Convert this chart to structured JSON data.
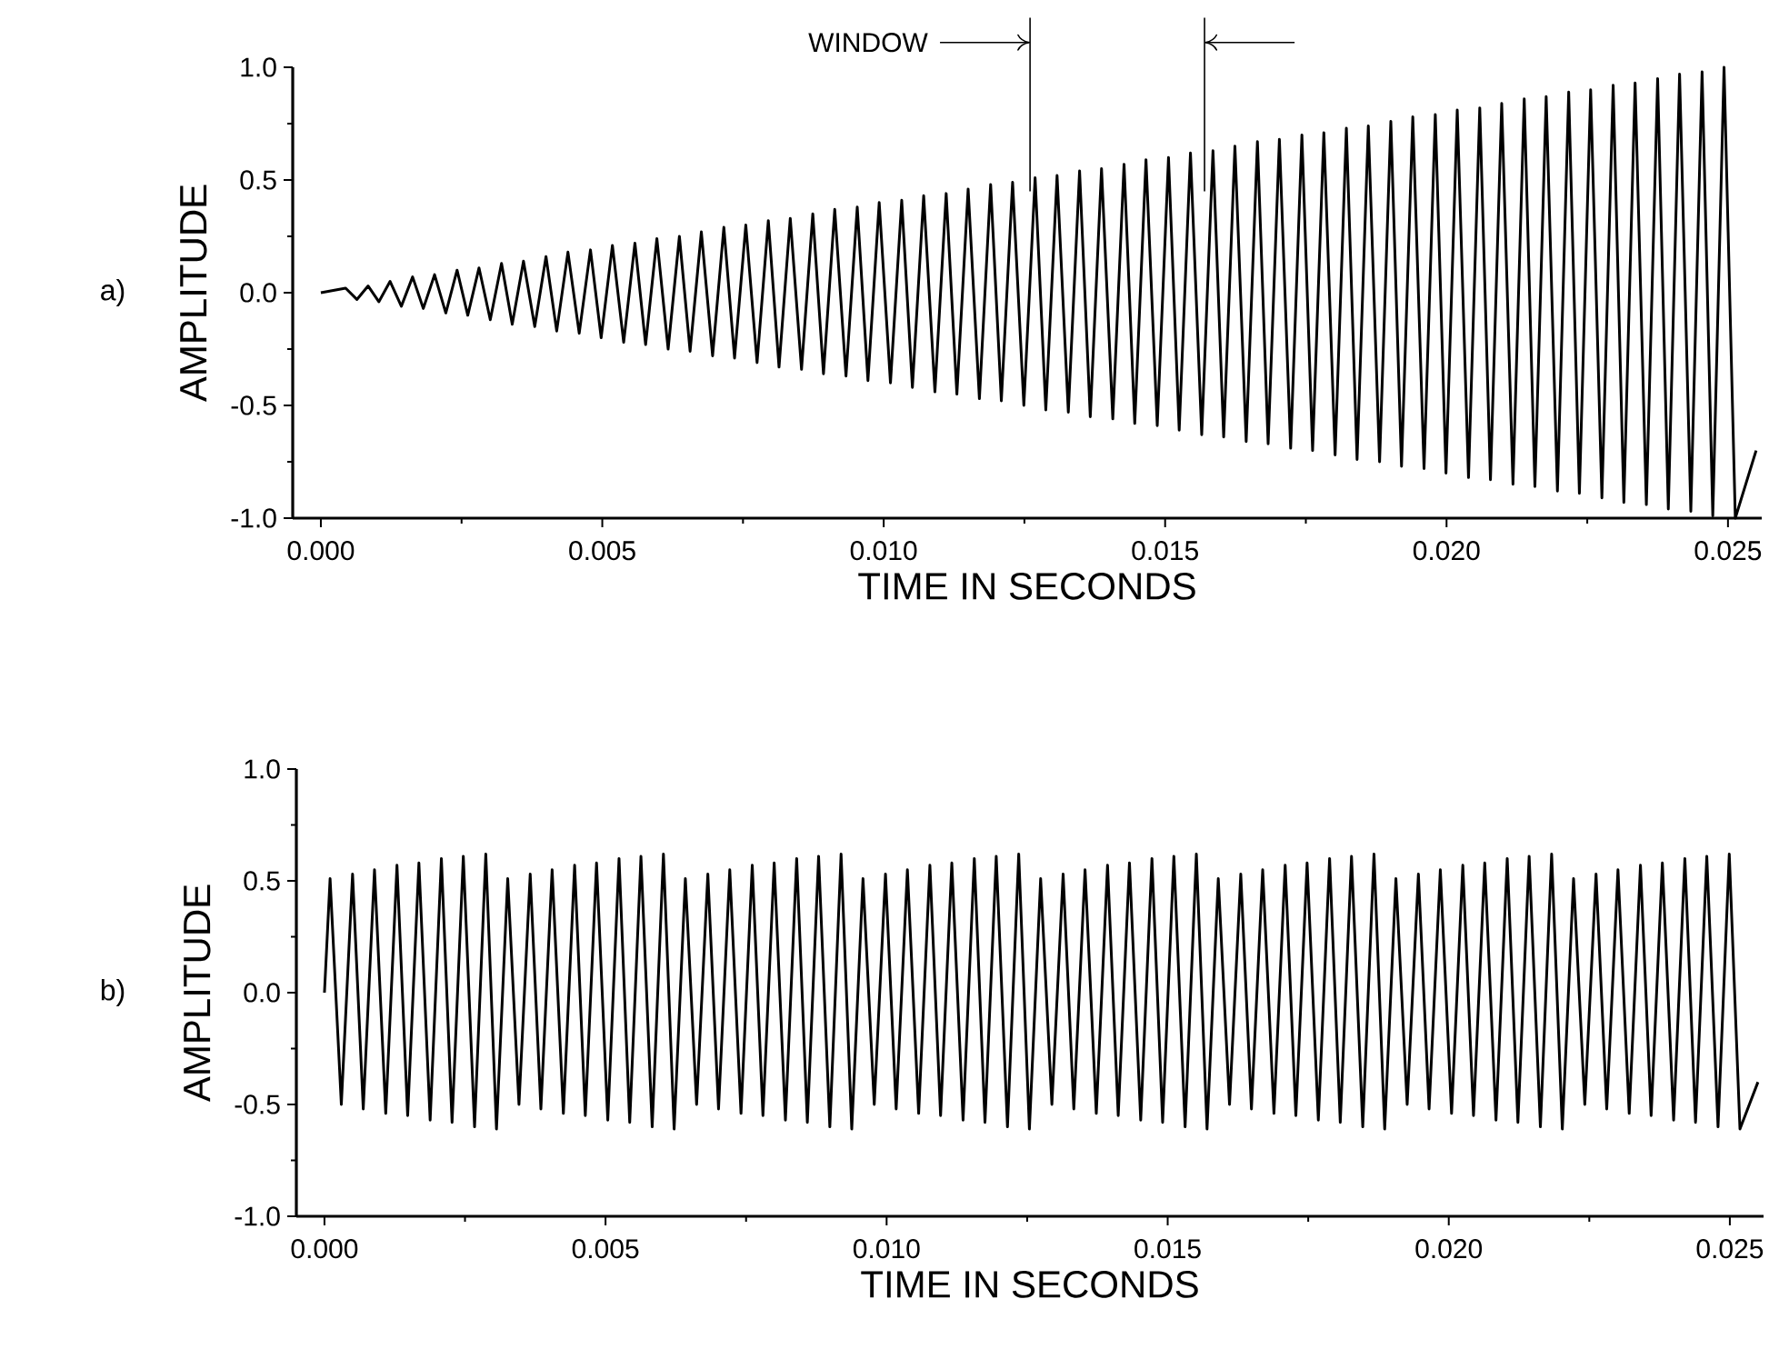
{
  "chart_data": [
    {
      "type": "line",
      "xlabel": "TIME IN SECONDS",
      "ylabel": "AMPLITUDE",
      "annotations": [
        "a)"
      ],
      "xlim": [
        -0.0005,
        0.0256
      ],
      "ylim": [
        -1,
        1
      ],
      "xticks": [
        {
          "value": 0,
          "label": "0.000"
        },
        {
          "value": 0.005,
          "label": "0.005"
        },
        {
          "value": 0.01,
          "label": "0.010"
        },
        {
          "value": 0.015,
          "label": "0.015"
        },
        {
          "value": 0.02,
          "label": "0.020"
        },
        {
          "value": 0.025,
          "label": "0.025"
        }
      ],
      "yticks": [
        {
          "value": -1,
          "label": "-1.0"
        },
        {
          "value": -0.5,
          "label": "-0.5"
        },
        {
          "value": 0,
          "label": "0.0"
        },
        {
          "value": 0.5,
          "label": "0.5"
        },
        {
          "value": 1,
          "label": "1.0"
        }
      ],
      "ref_lines": [
        {
          "axis": "x",
          "value": 0.0126,
          "label": "WINDOW"
        },
        {
          "axis": "x",
          "value": 0.0157
        }
      ],
      "x": [
        0,
        0.00044,
        0.00064,
        0.00084,
        0.00103,
        0.00123,
        0.00143,
        0.00163,
        0.00182,
        0.00202,
        0.00222,
        0.00242,
        0.00261,
        0.00281,
        0.00301,
        0.00321,
        0.0034,
        0.0036,
        0.0038,
        0.004,
        0.00419,
        0.00439,
        0.00459,
        0.00479,
        0.00498,
        0.00518,
        0.00538,
        0.00558,
        0.00577,
        0.00597,
        0.00617,
        0.00637,
        0.00656,
        0.00676,
        0.00696,
        0.00716,
        0.00735,
        0.00755,
        0.00775,
        0.00795,
        0.00814,
        0.00834,
        0.00854,
        0.00874,
        0.00893,
        0.00913,
        0.00933,
        0.00953,
        0.00972,
        0.00992,
        0.01012,
        0.01032,
        0.01051,
        0.01071,
        0.01091,
        0.01111,
        0.0113,
        0.0115,
        0.0117,
        0.0119,
        0.01209,
        0.01229,
        0.01249,
        0.01269,
        0.01288,
        0.01308,
        0.01328,
        0.01348,
        0.01367,
        0.01387,
        0.01407,
        0.01427,
        0.01446,
        0.01466,
        0.01486,
        0.01506,
        0.01525,
        0.01545,
        0.01565,
        0.01585,
        0.01604,
        0.01624,
        0.01644,
        0.01664,
        0.01683,
        0.01703,
        0.01723,
        0.01743,
        0.01762,
        0.01782,
        0.01802,
        0.01822,
        0.01841,
        0.01861,
        0.01881,
        0.01901,
        0.0192,
        0.0194,
        0.0196,
        0.0198,
        0.01999,
        0.02019,
        0.02039,
        0.02059,
        0.02078,
        0.02098,
        0.02118,
        0.02138,
        0.02157,
        0.02177,
        0.02197,
        0.02217,
        0.02236,
        0.02256,
        0.02276,
        0.02296,
        0.02315,
        0.02335,
        0.02355,
        0.02375,
        0.02394,
        0.02414,
        0.02434,
        0.02454,
        0.02473,
        0.02493,
        0.02513,
        0.0255
      ],
      "series": [
        {
          "color": "#000000",
          "values": [
            0,
            0.02,
            -0.03,
            0.03,
            -0.04,
            0.05,
            -0.06,
            0.07,
            -0.07,
            0.08,
            -0.09,
            0.1,
            -0.1,
            0.11,
            -0.12,
            0.13,
            -0.14,
            0.14,
            -0.15,
            0.16,
            -0.17,
            0.18,
            -0.18,
            0.19,
            -0.2,
            0.21,
            -0.22,
            0.22,
            -0.23,
            0.24,
            -0.25,
            0.25,
            -0.26,
            0.27,
            -0.28,
            0.29,
            -0.29,
            0.3,
            -0.31,
            0.32,
            -0.33,
            0.33,
            -0.34,
            0.35,
            -0.36,
            0.37,
            -0.37,
            0.38,
            -0.39,
            0.4,
            -0.4,
            0.41,
            -0.42,
            0.43,
            -0.44,
            0.44,
            -0.45,
            0.46,
            -0.47,
            0.48,
            -0.48,
            0.49,
            -0.5,
            0.51,
            -0.52,
            0.52,
            -0.53,
            0.54,
            -0.55,
            0.55,
            -0.56,
            0.57,
            -0.58,
            0.59,
            -0.59,
            0.6,
            -0.61,
            0.62,
            -0.63,
            0.63,
            -0.64,
            0.65,
            -0.66,
            0.67,
            -0.67,
            0.68,
            -0.69,
            0.7,
            -0.7,
            0.71,
            -0.72,
            0.73,
            -0.74,
            0.74,
            -0.75,
            0.76,
            -0.77,
            0.78,
            -0.78,
            0.79,
            -0.8,
            0.81,
            -0.82,
            0.82,
            -0.83,
            0.84,
            -0.85,
            0.86,
            -0.86,
            0.87,
            -0.88,
            0.89,
            -0.89,
            0.9,
            -0.91,
            0.92,
            -0.93,
            0.93,
            -0.94,
            0.95,
            -0.96,
            0.97,
            -0.97,
            0.98,
            -0.99,
            1.0,
            -1.0,
            -0.7
          ]
        }
      ]
    },
    {
      "type": "line",
      "xlabel": "TIME IN SECONDS",
      "ylabel": "AMPLITUDE",
      "annotations": [
        "b)"
      ],
      "xlim": [
        -0.0005,
        0.0256
      ],
      "ylim": [
        -1,
        1
      ],
      "xticks": [
        {
          "value": 0,
          "label": "0.000"
        },
        {
          "value": 0.005,
          "label": "0.005"
        },
        {
          "value": 0.01,
          "label": "0.010"
        },
        {
          "value": 0.015,
          "label": "0.015"
        },
        {
          "value": 0.02,
          "label": "0.020"
        },
        {
          "value": 0.025,
          "label": "0.025"
        }
      ],
      "yticks": [
        {
          "value": -1,
          "label": "-1.0"
        },
        {
          "value": -0.5,
          "label": "-0.5"
        },
        {
          "value": 0,
          "label": "0.0"
        },
        {
          "value": 0.5,
          "label": "0.5"
        },
        {
          "value": 1,
          "label": "1.0"
        }
      ],
      "x": [
        0,
        0.0001,
        0.0003,
        0.0005,
        0.00069,
        0.00089,
        0.00109,
        0.00129,
        0.00148,
        0.00168,
        0.00188,
        0.00208,
        0.00227,
        0.00247,
        0.00267,
        0.00287,
        0.00306,
        0.00326,
        0.00346,
        0.00366,
        0.00385,
        0.00405,
        0.00425,
        0.00445,
        0.00464,
        0.00484,
        0.00504,
        0.00524,
        0.00543,
        0.00563,
        0.00583,
        0.00603,
        0.00622,
        0.00642,
        0.00662,
        0.00682,
        0.00701,
        0.00721,
        0.00741,
        0.00761,
        0.0078,
        0.008,
        0.0082,
        0.0084,
        0.00859,
        0.00879,
        0.00899,
        0.00919,
        0.00938,
        0.00958,
        0.00978,
        0.00998,
        0.01017,
        0.01037,
        0.01057,
        0.01077,
        0.01096,
        0.01116,
        0.01136,
        0.01156,
        0.01175,
        0.01195,
        0.01215,
        0.01235,
        0.01254,
        0.01274,
        0.01294,
        0.01314,
        0.01333,
        0.01353,
        0.01373,
        0.01393,
        0.01412,
        0.01432,
        0.01452,
        0.01472,
        0.01491,
        0.01511,
        0.01531,
        0.01551,
        0.0157,
        0.0159,
        0.0161,
        0.0163,
        0.01649,
        0.01669,
        0.01689,
        0.01709,
        0.01728,
        0.01748,
        0.01768,
        0.01788,
        0.01807,
        0.01827,
        0.01847,
        0.01867,
        0.01886,
        0.01906,
        0.01926,
        0.01946,
        0.01965,
        0.01985,
        0.02005,
        0.02025,
        0.02044,
        0.02064,
        0.02084,
        0.02104,
        0.02123,
        0.02143,
        0.02163,
        0.02183,
        0.02202,
        0.02222,
        0.02242,
        0.02262,
        0.02281,
        0.02301,
        0.02321,
        0.02341,
        0.0236,
        0.0238,
        0.024,
        0.0242,
        0.02439,
        0.02459,
        0.02479,
        0.02499,
        0.02518,
        0.0255
      ],
      "series": [
        {
          "color": "#000000",
          "values": [
            0,
            0.51,
            -0.5,
            0.53,
            -0.52,
            0.55,
            -0.54,
            0.57,
            -0.55,
            0.58,
            -0.57,
            0.6,
            -0.58,
            0.61,
            -0.6,
            0.62,
            -0.61,
            0.51,
            -0.5,
            0.53,
            -0.52,
            0.55,
            -0.54,
            0.57,
            -0.55,
            0.58,
            -0.57,
            0.6,
            -0.58,
            0.61,
            -0.6,
            0.62,
            -0.61,
            0.51,
            -0.5,
            0.53,
            -0.52,
            0.55,
            -0.54,
            0.57,
            -0.55,
            0.58,
            -0.57,
            0.6,
            -0.58,
            0.61,
            -0.6,
            0.62,
            -0.61,
            0.51,
            -0.5,
            0.53,
            -0.52,
            0.55,
            -0.54,
            0.57,
            -0.55,
            0.58,
            -0.57,
            0.6,
            -0.58,
            0.61,
            -0.6,
            0.62,
            -0.61,
            0.51,
            -0.5,
            0.53,
            -0.52,
            0.55,
            -0.54,
            0.57,
            -0.55,
            0.58,
            -0.57,
            0.6,
            -0.58,
            0.61,
            -0.6,
            0.62,
            -0.61,
            0.51,
            -0.5,
            0.53,
            -0.52,
            0.55,
            -0.54,
            0.57,
            -0.55,
            0.58,
            -0.57,
            0.6,
            -0.58,
            0.61,
            -0.6,
            0.62,
            -0.61,
            0.51,
            -0.5,
            0.53,
            -0.52,
            0.55,
            -0.54,
            0.57,
            -0.55,
            0.58,
            -0.57,
            0.6,
            -0.58,
            0.61,
            -0.6,
            0.62,
            -0.61,
            0.51,
            -0.5,
            0.53,
            -0.52,
            0.55,
            -0.54,
            0.57,
            -0.55,
            0.58,
            -0.57,
            0.6,
            -0.58,
            0.61,
            -0.6,
            0.62,
            -0.61,
            -0.4
          ]
        }
      ]
    }
  ]
}
